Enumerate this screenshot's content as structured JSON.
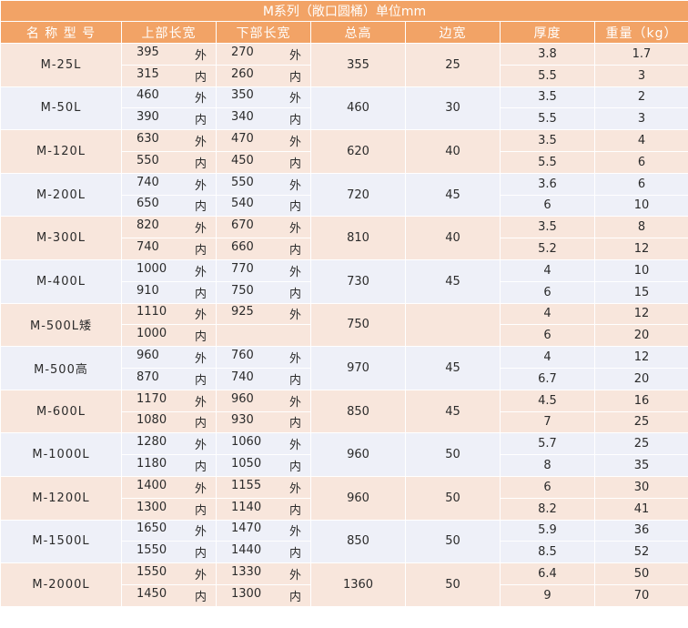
{
  "title": "M系列（敞口圆桶）单位mm",
  "headers": {
    "name": "名 称 型 号",
    "top": "上部长宽",
    "bottom": "下部长宽",
    "height": "总高",
    "edge": "边宽",
    "thickness": "厚度",
    "weight": "重量（kg）"
  },
  "tags": {
    "outer": "外",
    "inner": "内"
  },
  "rows": [
    {
      "name": "M-25L",
      "top_out": "395",
      "top_in": "315",
      "bot_out": "270",
      "bot_in": "260",
      "height": "355",
      "edge": "25",
      "thick": [
        "3.8",
        "5.5"
      ],
      "weight": [
        "1.7",
        "3"
      ]
    },
    {
      "name": "M-50L",
      "top_out": "460",
      "top_in": "390",
      "bot_out": "350",
      "bot_in": "340",
      "height": "460",
      "edge": "30",
      "thick": [
        "3.5",
        "5.5"
      ],
      "weight": [
        "2",
        "3"
      ]
    },
    {
      "name": "M-120L",
      "top_out": "630",
      "top_in": "550",
      "bot_out": "470",
      "bot_in": "450",
      "height": "620",
      "edge": "40",
      "thick": [
        "3.5",
        "5.5"
      ],
      "weight": [
        "4",
        "6"
      ]
    },
    {
      "name": "M-200L",
      "top_out": "740",
      "top_in": "650",
      "bot_out": "550",
      "bot_in": "540",
      "height": "720",
      "edge": "45",
      "thick": [
        "3.6",
        "6"
      ],
      "weight": [
        "6",
        "10"
      ]
    },
    {
      "name": "M-300L",
      "top_out": "820",
      "top_in": "740",
      "bot_out": "670",
      "bot_in": "660",
      "height": "810",
      "edge": "40",
      "thick": [
        "3.5",
        "5.2"
      ],
      "weight": [
        "8",
        "12"
      ]
    },
    {
      "name": "M-400L",
      "top_out": "1000",
      "top_in": "910",
      "bot_out": "770",
      "bot_in": "750",
      "height": "730",
      "edge": "45",
      "thick": [
        "4",
        "6"
      ],
      "weight": [
        "10",
        "15"
      ]
    },
    {
      "name": "M-500L矮",
      "top_out": "1110",
      "top_in": "1000",
      "bot_out": "925",
      "bot_in": "",
      "height": "750",
      "edge": "",
      "thick": [
        "4",
        "6"
      ],
      "weight": [
        "12",
        "20"
      ]
    },
    {
      "name": "M-500高",
      "top_out": "960",
      "top_in": "870",
      "bot_out": "760",
      "bot_in": "740",
      "height": "970",
      "edge": "45",
      "thick": [
        "4",
        "6.7"
      ],
      "weight": [
        "12",
        "20"
      ]
    },
    {
      "name": "M-600L",
      "top_out": "1170",
      "top_in": "1080",
      "bot_out": "960",
      "bot_in": "930",
      "height": "850",
      "edge": "45",
      "thick": [
        "4.5",
        "7"
      ],
      "weight": [
        "16",
        "25"
      ]
    },
    {
      "name": "M-1000L",
      "top_out": "1280",
      "top_in": "1180",
      "bot_out": "1060",
      "bot_in": "1050",
      "height": "960",
      "edge": "50",
      "thick": [
        "5.7",
        "8"
      ],
      "weight": [
        "25",
        "35"
      ]
    },
    {
      "name": "M-1200L",
      "top_out": "1400",
      "top_in": "1300",
      "bot_out": "1155",
      "bot_in": "1140",
      "height": "960",
      "edge": "50",
      "thick": [
        "6",
        "8.2"
      ],
      "weight": [
        "30",
        "41"
      ]
    },
    {
      "name": "M-1500L",
      "top_out": "1650",
      "top_in": "1550",
      "bot_out": "1470",
      "bot_in": "1440",
      "height": "850",
      "edge": "50",
      "thick": [
        "5.9",
        "8.5"
      ],
      "weight": [
        "36",
        "52"
      ]
    },
    {
      "name": "M-2000L",
      "top_out": "1550",
      "top_in": "1450",
      "bot_out": "1330",
      "bot_in": "1300",
      "height": "1360",
      "edge": "50",
      "thick": [
        "6.4",
        "9"
      ],
      "weight": [
        "50",
        "70"
      ]
    }
  ]
}
